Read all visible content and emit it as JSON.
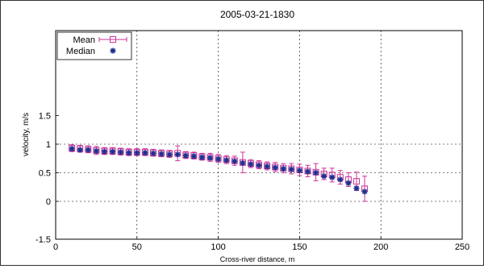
{
  "chart_data": {
    "type": "scatter",
    "title": "2005-03-21-1830",
    "xlabel": "Cross-river distance, m",
    "ylabel": "velocity, m/s",
    "xlim": [
      0,
      250
    ],
    "ylim": [
      -1.5,
      1.5
    ],
    "x_ticks": [
      "0",
      "50",
      "100",
      "150",
      "200",
      "250"
    ],
    "y_ticks": [
      "1.5",
      "1",
      "0.5",
      "0",
      "-1.5"
    ],
    "grid": true,
    "legend_position": "top-left",
    "series": [
      {
        "name": "Mean",
        "marker": "open-square",
        "color": "#cc3399",
        "x": [
          10,
          15,
          20,
          25,
          30,
          35,
          40,
          45,
          50,
          55,
          60,
          65,
          70,
          75,
          80,
          85,
          90,
          95,
          100,
          105,
          110,
          115,
          120,
          125,
          130,
          135,
          140,
          145,
          150,
          155,
          160,
          165,
          170,
          175,
          180,
          185,
          190
        ],
        "y": [
          0.93,
          0.92,
          0.91,
          0.89,
          0.88,
          0.88,
          0.87,
          0.86,
          0.86,
          0.86,
          0.85,
          0.84,
          0.83,
          0.84,
          0.81,
          0.8,
          0.78,
          0.77,
          0.75,
          0.73,
          0.71,
          0.68,
          0.66,
          0.64,
          0.62,
          0.6,
          0.58,
          0.57,
          0.55,
          0.53,
          0.51,
          0.48,
          0.46,
          0.42,
          0.38,
          0.35,
          0.22
        ],
        "err": [
          0.06,
          0.06,
          0.06,
          0.07,
          0.06,
          0.06,
          0.06,
          0.06,
          0.06,
          0.06,
          0.06,
          0.06,
          0.06,
          0.13,
          0.06,
          0.06,
          0.06,
          0.07,
          0.07,
          0.07,
          0.08,
          0.18,
          0.07,
          0.07,
          0.07,
          0.08,
          0.08,
          0.09,
          0.1,
          0.1,
          0.15,
          0.1,
          0.12,
          0.12,
          0.12,
          0.16,
          0.22
        ]
      },
      {
        "name": "Median",
        "marker": "asterisk",
        "color": "#1f2f8f",
        "x": [
          10,
          15,
          20,
          25,
          30,
          35,
          40,
          45,
          50,
          55,
          60,
          65,
          70,
          75,
          80,
          85,
          90,
          95,
          100,
          105,
          110,
          115,
          120,
          125,
          130,
          135,
          140,
          145,
          150,
          155,
          160,
          165,
          170,
          175,
          180,
          185,
          190
        ],
        "y": [
          0.92,
          0.9,
          0.9,
          0.88,
          0.87,
          0.87,
          0.86,
          0.85,
          0.85,
          0.85,
          0.84,
          0.83,
          0.82,
          0.82,
          0.8,
          0.79,
          0.77,
          0.76,
          0.74,
          0.72,
          0.7,
          0.67,
          0.65,
          0.63,
          0.61,
          0.59,
          0.57,
          0.56,
          0.54,
          0.52,
          0.5,
          0.44,
          0.42,
          0.38,
          0.32,
          0.23,
          0.17
        ]
      }
    ]
  }
}
